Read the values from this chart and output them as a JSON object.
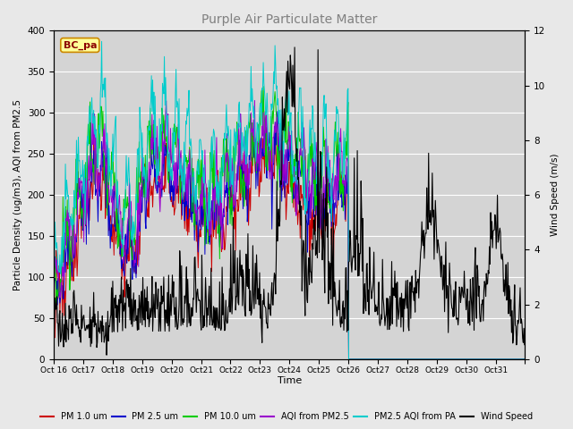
{
  "title": "Purple Air Particulate Matter",
  "xlabel": "Time",
  "ylabel_left": "Particle Density (ug/m3), AQI from PM2.5",
  "ylabel_right": "Wind Speed (m/s)",
  "ylim_left": [
    0,
    400
  ],
  "ylim_right": [
    0,
    12
  ],
  "annotation_text": "BC_pa",
  "colors": {
    "pm1": "#cc0000",
    "pm25": "#0000cc",
    "pm10": "#00cc00",
    "aqi_pm25": "#9900cc",
    "pm25_aqi_pa": "#00cccc",
    "wind": "#000000"
  },
  "legend_labels": [
    "PM 1.0 um",
    "PM 2.5 um",
    "PM 10.0 um",
    "AQI from PM2.5",
    "PM2.5 AQI from PA",
    "Wind Speed"
  ],
  "figsize": [
    6.4,
    4.8
  ],
  "dpi": 100,
  "background_color": "#e8e8e8",
  "plot_bg_color": "#d4d4d4",
  "grid_color": "#ffffff",
  "title_color": "#808080",
  "yticks_left": [
    0,
    50,
    100,
    150,
    200,
    250,
    300,
    350,
    400
  ],
  "yticks_right": [
    0,
    2,
    4,
    6,
    8,
    10,
    12
  ],
  "x_tick_labels": [
    "Oct 16",
    "Oct 17",
    "Oct 18",
    "Oct 19",
    "Oct 20",
    "Oct 21",
    "Oct 22",
    "Oct 23",
    "Oct 24",
    "Oct 25",
    "Oct 26",
    "Oct 27",
    "Oct 28",
    "Oct 29",
    "Oct 30",
    "Oct 31"
  ],
  "n_days": 16,
  "active_days": 10,
  "seed": 12345
}
